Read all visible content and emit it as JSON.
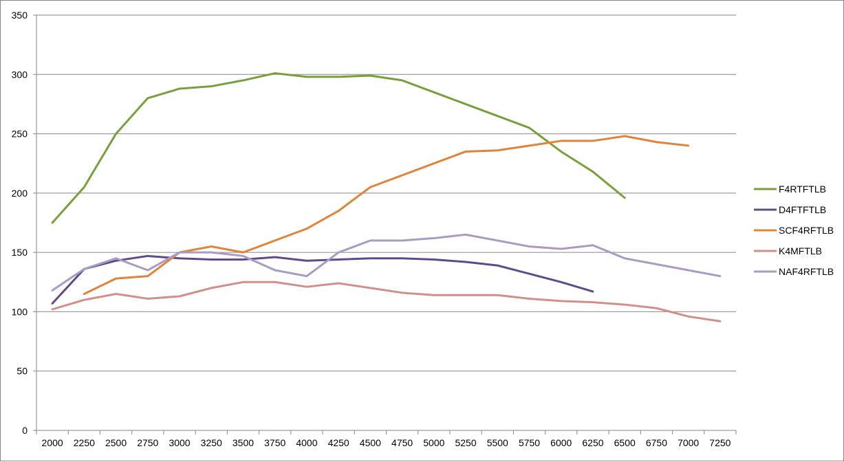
{
  "chart_data": {
    "type": "line",
    "x": [
      2000,
      2250,
      2500,
      2750,
      3000,
      3250,
      3500,
      3750,
      4000,
      4250,
      4500,
      4750,
      5000,
      5250,
      5500,
      5750,
      6000,
      6250,
      6500,
      6750,
      7000,
      7250
    ],
    "ylim": [
      0,
      350
    ],
    "yticks": [
      0,
      50,
      100,
      150,
      200,
      250,
      300,
      350
    ],
    "grid": true,
    "legend_position": "right",
    "series": [
      {
        "name": "F4RTFTLB",
        "color": "#77a03c",
        "values": [
          175,
          205,
          250,
          280,
          288,
          290,
          295,
          301,
          298,
          298,
          299,
          295,
          285,
          275,
          265,
          255,
          235,
          218,
          196,
          null,
          null,
          null
        ]
      },
      {
        "name": "D4FTFTLB",
        "color": "#5f4b8b",
        "values": [
          107,
          136,
          143,
          147,
          145,
          144,
          144,
          146,
          143,
          144,
          145,
          145,
          144,
          142,
          139,
          132,
          125,
          117,
          null,
          null,
          null,
          null
        ]
      },
      {
        "name": "SCF4RFTLB",
        "color": "#e0843a",
        "values": [
          null,
          115,
          128,
          130,
          150,
          155,
          150,
          160,
          170,
          185,
          205,
          215,
          225,
          235,
          236,
          240,
          244,
          244,
          248,
          243,
          240,
          null
        ]
      },
      {
        "name": "K4MFTLB",
        "color": "#d28f8a",
        "values": [
          102,
          110,
          115,
          111,
          113,
          120,
          125,
          125,
          121,
          124,
          120,
          116,
          114,
          114,
          114,
          111,
          109,
          108,
          106,
          103,
          96,
          92
        ]
      },
      {
        "name": "NAF4RFTLB",
        "color": "#a99bc4",
        "values": [
          118,
          136,
          145,
          135,
          150,
          150,
          147,
          135,
          130,
          150,
          160,
          160,
          162,
          165,
          160,
          155,
          153,
          156,
          145,
          140,
          135,
          130
        ]
      }
    ]
  }
}
